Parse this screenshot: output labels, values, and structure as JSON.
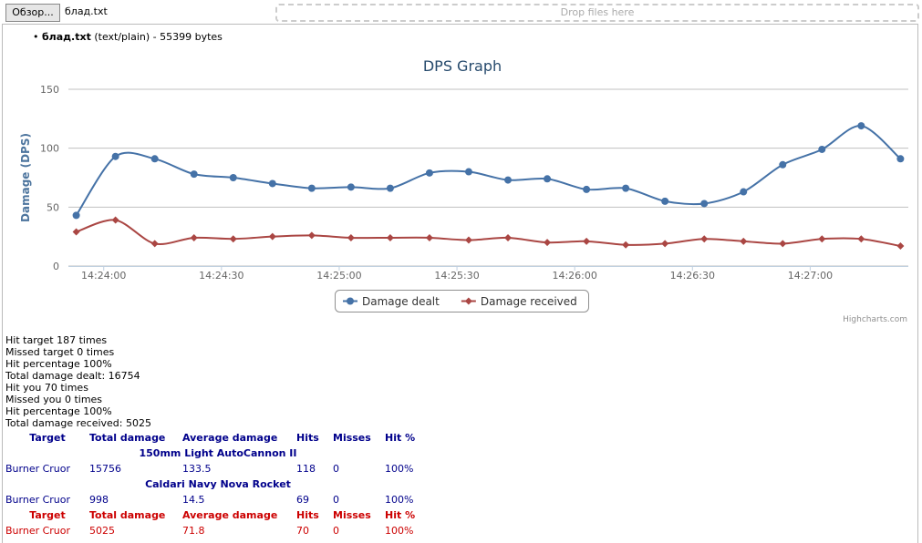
{
  "toolbar": {
    "button": "Обзор...",
    "file_name": "блад.txt",
    "drop_zone": "Drop files here"
  },
  "file_info": {
    "name": "блад.txt",
    "details": "(text/plain) - 55399 bytes"
  },
  "chart_data": {
    "type": "line",
    "title": "DPS Graph",
    "y_label": "Damage (DPS)",
    "credit": "Highcharts.com",
    "x": [
      "14:23:53",
      "14:24:03",
      "14:24:13",
      "14:24:23",
      "14:24:33",
      "14:24:43",
      "14:24:53",
      "14:25:03",
      "14:25:13",
      "14:25:23",
      "14:25:33",
      "14:25:43",
      "14:25:53",
      "14:26:03",
      "14:26:13",
      "14:26:23",
      "14:26:33",
      "14:26:43",
      "14:26:53",
      "14:27:03",
      "14:27:13",
      "14:27:23"
    ],
    "series": [
      {
        "name": "Damage dealt",
        "color": "#4572a7",
        "marker": "circle",
        "values": [
          43,
          93,
          91,
          78,
          75,
          70,
          66,
          67,
          66,
          79,
          80,
          73,
          74,
          65,
          66,
          55,
          53,
          63,
          86,
          99,
          119,
          91
        ]
      },
      {
        "name": "Damage received",
        "color": "#aa4643",
        "marker": "diamond",
        "values": [
          29,
          39,
          19,
          24,
          23,
          25,
          26,
          24,
          24,
          24,
          22,
          24,
          20,
          21,
          18,
          19,
          23,
          21,
          19,
          23,
          23,
          17
        ]
      }
    ],
    "xlim": [
      "14:23:51",
      "14:27:25"
    ],
    "xticks": [
      "14:24:00",
      "14:24:30",
      "14:25:00",
      "14:25:30",
      "14:26:00",
      "14:26:30",
      "14:27:00"
    ],
    "ylim": [
      0,
      150
    ],
    "yticks": [
      0,
      50,
      100,
      150
    ],
    "grid": true,
    "legend": "bottom"
  },
  "stats": [
    "Hit target 187 times",
    "Missed target 0 times",
    "Hit percentage 100%",
    "Total damage dealt: 16754",
    "Hit you 70 times",
    "Missed you 0 times",
    "Hit percentage 100%",
    "Total damage received: 5025"
  ],
  "outgoing": {
    "header": [
      "Target",
      "Total damage",
      "Average damage",
      "Hits",
      "Misses",
      "Hit %"
    ],
    "groups": [
      {
        "weapon": "150mm Light AutoCannon II",
        "row": [
          "Burner Cruor",
          "15756",
          "133.5",
          "118",
          "0",
          "100%"
        ]
      },
      {
        "weapon": "Caldari Navy Nova Rocket",
        "row": [
          "Burner Cruor",
          "998",
          "14.5",
          "69",
          "0",
          "100%"
        ]
      }
    ]
  },
  "incoming": {
    "header": [
      "Target",
      "Total damage",
      "Average damage",
      "Hits",
      "Misses",
      "Hit %"
    ],
    "row": [
      "Burner Cruor",
      "5025",
      "71.8",
      "70",
      "0",
      "100%"
    ]
  }
}
